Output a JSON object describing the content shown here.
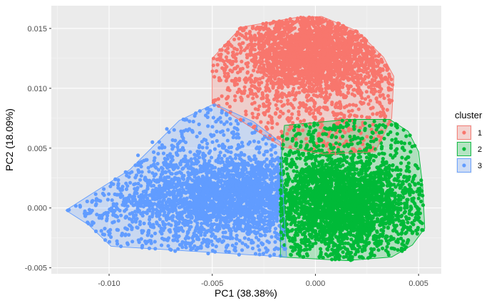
{
  "chart_data": {
    "type": "scatter",
    "xlabel": "PC1 (38.38%)",
    "ylabel": "PC2 (18.09%)",
    "xlim": [
      -0.0128,
      0.0061
    ],
    "ylim": [
      -0.0055,
      0.0169
    ],
    "x_ticks": [
      {
        "value": -0.01,
        "label": "-0.010"
      },
      {
        "value": -0.005,
        "label": "-0.005"
      },
      {
        "value": 0.0,
        "label": "0.000"
      },
      {
        "value": 0.005,
        "label": "0.005"
      }
    ],
    "y_ticks": [
      {
        "value": -0.005,
        "label": "-0.005"
      },
      {
        "value": 0.0,
        "label": "0.000"
      },
      {
        "value": 0.005,
        "label": "0.005"
      },
      {
        "value": 0.01,
        "label": "0.010"
      },
      {
        "value": 0.015,
        "label": "0.015"
      }
    ],
    "grid": true,
    "legend": {
      "title": "cluster",
      "position": "right"
    },
    "series": [
      {
        "name": "1",
        "color": "#F8766D",
        "hull": [
          [
            0.0003,
            0.016
          ],
          [
            0.002,
            0.0148
          ],
          [
            0.0033,
            0.0126
          ],
          [
            0.0038,
            0.011
          ],
          [
            0.0037,
            0.0075
          ],
          [
            0.0029,
            0.0047
          ],
          [
            0.0004,
            0.0045
          ],
          [
            -0.0016,
            0.0051
          ],
          [
            -0.005,
            0.0088
          ],
          [
            -0.005,
            0.0125
          ],
          [
            -0.0036,
            0.0151
          ],
          [
            -0.001,
            0.0159
          ]
        ],
        "bulk": {
          "center": [
            -0.0001,
            0.0129
          ],
          "spread": [
            0.0017,
            0.0018
          ]
        },
        "sample_points": [
          [
            -0.0047,
            0.0091
          ],
          [
            -0.0043,
            0.0118
          ],
          [
            -0.0037,
            0.0099
          ],
          [
            -0.0031,
            0.0137
          ],
          [
            -0.0025,
            0.0085
          ],
          [
            -0.0021,
            0.0071
          ],
          [
            -0.0016,
            0.0061
          ],
          [
            -0.0012,
            0.0112
          ],
          [
            -0.0008,
            0.0078
          ],
          [
            -0.0004,
            0.0094
          ],
          [
            0.0002,
            0.0072
          ],
          [
            0.0006,
            0.0101
          ],
          [
            0.0011,
            0.0084
          ],
          [
            0.0016,
            0.0118
          ],
          [
            0.0021,
            0.0096
          ],
          [
            0.0026,
            0.0131
          ],
          [
            0.003,
            0.0079
          ],
          [
            0.0034,
            0.0109
          ],
          [
            0.0036,
            0.0088
          ],
          [
            -0.0027,
            0.0149
          ],
          [
            -0.001,
            0.0155
          ],
          [
            0.0003,
            0.0157
          ],
          [
            0.0015,
            0.015
          ],
          [
            0.0024,
            0.0141
          ],
          [
            -0.004,
            0.013
          ],
          [
            -0.0019,
            0.0104
          ],
          [
            0.0009,
            0.006
          ],
          [
            0.0019,
            0.0067
          ]
        ]
      },
      {
        "name": "2",
        "color": "#00BA38",
        "hull": [
          [
            -0.0017,
            0.0034
          ],
          [
            -0.0015,
            0.0069
          ],
          [
            0.0016,
            0.0074
          ],
          [
            0.0036,
            0.0074
          ],
          [
            0.0045,
            0.0064
          ],
          [
            0.005,
            0.0047
          ],
          [
            0.0052,
            0.0018
          ],
          [
            0.0053,
            -0.0017
          ],
          [
            0.0047,
            -0.0031
          ],
          [
            0.0037,
            -0.0041
          ],
          [
            0.0015,
            -0.0044
          ],
          [
            -0.0017,
            -0.0041
          ]
        ],
        "bulk": {
          "center": [
            0.0012,
            0.0005
          ],
          "spread": [
            0.0017,
            0.002
          ]
        },
        "sample_points": [
          [
            -0.0016,
            0.006
          ],
          [
            -0.0014,
            0.0041
          ],
          [
            -0.0015,
            -0.0031
          ],
          [
            -0.0012,
            -0.0039
          ],
          [
            0.0049,
            0.0035
          ],
          [
            0.005,
            0.0008
          ],
          [
            0.0051,
            -0.0012
          ],
          [
            0.0045,
            -0.0027
          ],
          [
            0.004,
            0.0055
          ],
          [
            0.0034,
            0.0068
          ],
          [
            0.0024,
            0.0065
          ],
          [
            0.0009,
            0.0069
          ],
          [
            -0.0006,
            -0.0041
          ],
          [
            0.0008,
            -0.0043
          ],
          [
            0.0027,
            -0.004
          ],
          [
            0.0042,
            -0.0036
          ],
          [
            0.0044,
            0.006
          ],
          [
            -0.0003,
            0.0064
          ],
          [
            0.0046,
            -0.0016
          ],
          [
            0.0047,
            0.0022
          ]
        ]
      },
      {
        "name": "3",
        "color": "#619CFF",
        "hull": [
          [
            -0.0121,
            -0.0002
          ],
          [
            -0.009,
            0.0032
          ],
          [
            -0.0066,
            0.0073
          ],
          [
            -0.0049,
            0.0087
          ],
          [
            -0.003,
            0.0072
          ],
          [
            -0.0017,
            0.0055
          ],
          [
            -0.0014,
            -0.0041
          ],
          [
            -0.0099,
            -0.0032
          ],
          [
            -0.011,
            -0.0014
          ]
        ],
        "bulk": {
          "center": [
            -0.0042,
            0.001
          ],
          "spread": [
            0.0024,
            0.0017
          ]
        },
        "sample_points": [
          [
            -0.012,
            -0.0002
          ],
          [
            -0.0114,
            0.0001
          ],
          [
            -0.0108,
            0.0006
          ],
          [
            -0.0103,
            0.0012
          ],
          [
            -0.0097,
            0.0024
          ],
          [
            -0.0092,
            0.003
          ],
          [
            -0.0086,
            0.0044
          ],
          [
            -0.0079,
            0.0055
          ],
          [
            -0.0072,
            0.0066
          ],
          [
            -0.0064,
            0.0074
          ],
          [
            -0.0056,
            0.0081
          ],
          [
            -0.0049,
            0.0086
          ],
          [
            -0.0043,
            0.0079
          ],
          [
            -0.0036,
            0.0073
          ],
          [
            -0.0029,
            0.0066
          ],
          [
            -0.0022,
            0.0058
          ],
          [
            -0.0103,
            -0.0022
          ],
          [
            -0.0096,
            -0.003
          ],
          [
            -0.0084,
            -0.0033
          ],
          [
            -0.0068,
            -0.0036
          ],
          [
            -0.0052,
            -0.0038
          ],
          [
            -0.0037,
            -0.0039
          ],
          [
            -0.0022,
            -0.004
          ],
          [
            -0.0017,
            -0.004
          ],
          [
            -0.011,
            -0.0013
          ],
          [
            -0.0101,
            -0.0009
          ],
          [
            -0.0093,
            0.0005
          ],
          [
            -0.0082,
            0.0011
          ]
        ]
      }
    ]
  }
}
